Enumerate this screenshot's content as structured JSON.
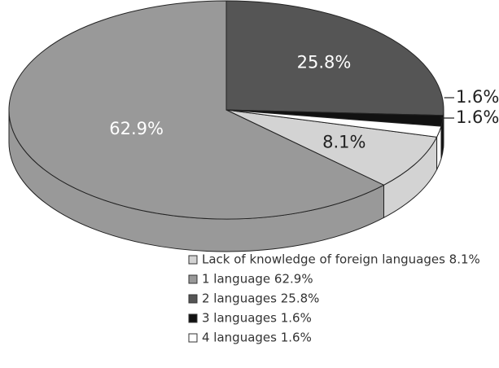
{
  "chart_data": {
    "type": "pie",
    "categories": [
      "Lack of knowledge of foreign languages 8.1%",
      "1 language 62.9%",
      "2 languages 25.8%",
      "3 languages 1.6%",
      "4 languages 1.6%"
    ],
    "values": [
      8.1,
      62.9,
      25.8,
      1.6,
      1.6
    ],
    "value_labels": [
      "8.1%",
      "62.9%",
      "25.8%",
      "1.6%",
      "1.6%"
    ],
    "colors": [
      "#d3d3d3",
      "#999999",
      "#555555",
      "#111111",
      "#ffffff"
    ]
  }
}
